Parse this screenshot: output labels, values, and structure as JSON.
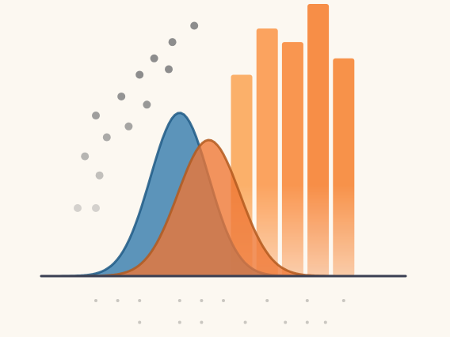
{
  "chart_data": {
    "type": "area",
    "title": "",
    "xlabel": "",
    "ylabel": "",
    "grid": false,
    "legend": "none",
    "xlim": [
      0,
      10
    ],
    "ylim": [
      0,
      10
    ],
    "series": [
      {
        "kind": "density",
        "mean": 3.8,
        "sd": 0.8,
        "peak": 6.0,
        "color": "#3f82b0",
        "stroke": "#1f5a86"
      },
      {
        "kind": "density",
        "mean": 4.6,
        "sd": 0.85,
        "peak": 5.0,
        "color": "#ee7633",
        "stroke": "#b35a1f"
      }
    ],
    "bars": [
      {
        "x": 5.5,
        "value": 7.4,
        "color": "#fbb06a"
      },
      {
        "x": 6.2,
        "value": 9.1,
        "color": "#fba35f"
      },
      {
        "x": 6.9,
        "value": 8.6,
        "color": "#f99650"
      },
      {
        "x": 7.6,
        "value": 10.0,
        "color": "#f78e47"
      },
      {
        "x": 8.3,
        "value": 8.0,
        "color": "#f7924a"
      }
    ],
    "scatter": [
      {
        "x": 4.2,
        "y": 9.2
      },
      {
        "x": 3.6,
        "y": 8.6
      },
      {
        "x": 3.1,
        "y": 8.0
      },
      {
        "x": 2.7,
        "y": 7.4
      },
      {
        "x": 3.5,
        "y": 7.6
      },
      {
        "x": 2.2,
        "y": 6.6
      },
      {
        "x": 2.9,
        "y": 6.3
      },
      {
        "x": 1.5,
        "y": 5.9
      },
      {
        "x": 2.4,
        "y": 5.5
      },
      {
        "x": 1.8,
        "y": 5.1
      },
      {
        "x": 1.2,
        "y": 4.4
      },
      {
        "x": 1.6,
        "y": 3.7
      },
      {
        "x": 1.0,
        "y": 2.5
      },
      {
        "x": 1.5,
        "y": 2.5
      }
    ],
    "baseline_dots": [
      {
        "x": 1.5,
        "y": -0.9
      },
      {
        "x": 2.1,
        "y": -0.9
      },
      {
        "x": 2.7,
        "y": -0.9
      },
      {
        "x": 3.8,
        "y": -0.9
      },
      {
        "x": 4.4,
        "y": -0.9
      },
      {
        "x": 5.0,
        "y": -0.9
      },
      {
        "x": 6.2,
        "y": -0.9
      },
      {
        "x": 7.3,
        "y": -0.9
      },
      {
        "x": 8.3,
        "y": -0.9
      },
      {
        "x": 2.7,
        "y": -1.7
      },
      {
        "x": 3.8,
        "y": -1.7
      },
      {
        "x": 4.4,
        "y": -1.7
      },
      {
        "x": 5.6,
        "y": -1.7
      },
      {
        "x": 6.7,
        "y": -1.7
      },
      {
        "x": 7.3,
        "y": -1.7
      },
      {
        "x": 7.8,
        "y": -1.7
      }
    ]
  }
}
